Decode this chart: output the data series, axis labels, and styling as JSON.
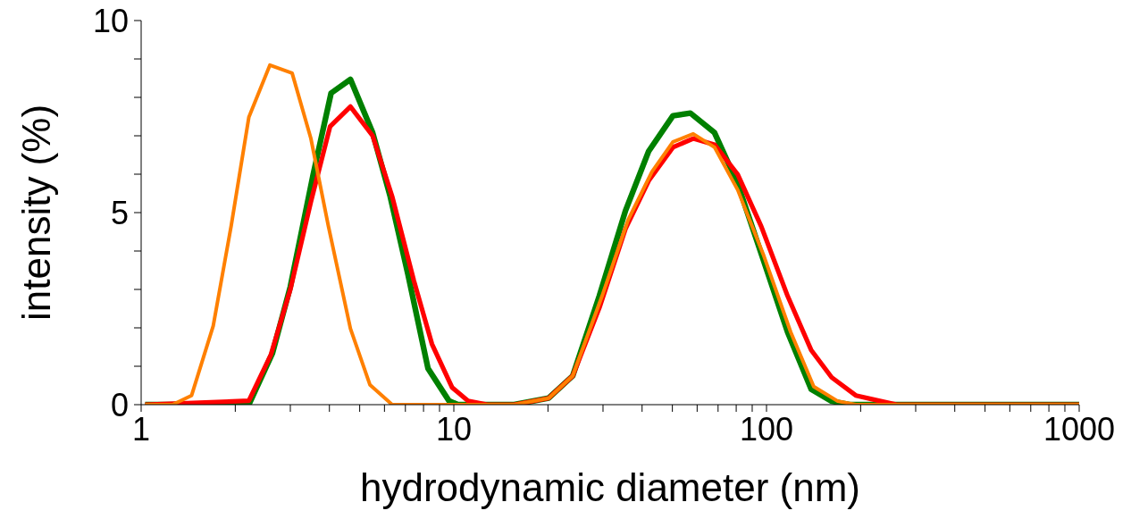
{
  "chart_data": {
    "type": "line",
    "xlabel": "hydrodynamic diameter (nm)",
    "ylabel": "intensity (%)",
    "log": "x",
    "xlim": [
      1,
      1000
    ],
    "ylim": [
      0,
      10
    ],
    "marker": "none",
    "line_style": "solid",
    "xticks": [
      1,
      {
        "value": 2,
        "label": null
      },
      {
        "value": 3,
        "label": null
      },
      {
        "value": 4,
        "label": null
      },
      {
        "value": 5,
        "label": null
      },
      {
        "value": 6,
        "label": null
      },
      {
        "value": 7,
        "label": null
      },
      {
        "value": 8,
        "label": null
      },
      {
        "value": 9,
        "label": null
      },
      10,
      {
        "value": 20,
        "label": null
      },
      {
        "value": 30,
        "label": null
      },
      {
        "value": 40,
        "label": null
      },
      {
        "value": 50,
        "label": null
      },
      {
        "value": 60,
        "label": null
      },
      {
        "value": 70,
        "label": null
      },
      {
        "value": 80,
        "label": null
      },
      {
        "value": 90,
        "label": null
      },
      100,
      {
        "value": 200,
        "label": null
      },
      {
        "value": 300,
        "label": null
      },
      {
        "value": 400,
        "label": null
      },
      {
        "value": 500,
        "label": null
      },
      {
        "value": 600,
        "label": null
      },
      {
        "value": 700,
        "label": null
      },
      {
        "value": 800,
        "label": null
      },
      {
        "value": 900,
        "label": null
      },
      1000
    ],
    "yticks": [
      0,
      {
        "value": 1,
        "label": null
      },
      {
        "value": 2,
        "label": null
      },
      {
        "value": 3,
        "label": null
      },
      {
        "value": 4,
        "label": null
      },
      5,
      {
        "value": 6,
        "label": null
      },
      {
        "value": 7,
        "label": null
      },
      {
        "value": 8,
        "label": null
      },
      {
        "value": 9,
        "label": null
      },
      10
    ],
    "series": [
      {
        "color": "#008000",
        "x": [
          1.03,
          2.21,
          2.63,
          3.0,
          3.55,
          4.05,
          4.67,
          5.5,
          6.26,
          7.13,
          8.27,
          9.65,
          10.3,
          15.6,
          20.1,
          24.0,
          29.2,
          35.4,
          42.0,
          50.2,
          57.1,
          68.2,
          80.9,
          96.1,
          116.8,
          139,
          161.6,
          184,
          1000
        ],
        "values": [
          0,
          0,
          1.34,
          3.07,
          5.99,
          8.11,
          8.47,
          7.08,
          5.42,
          3.4,
          0.94,
          0.1,
          0,
          0,
          0.17,
          0.75,
          2.83,
          5.05,
          6.6,
          7.52,
          7.59,
          7.08,
          5.75,
          3.94,
          1.89,
          0.4,
          0.09,
          0,
          0
        ]
      },
      {
        "color": "#ff0000",
        "x": [
          1.03,
          2.21,
          2.6,
          3.0,
          3.49,
          4.02,
          4.67,
          5.5,
          6.35,
          7.45,
          8.51,
          9.87,
          11.1,
          12.8,
          15.6,
          20.1,
          24.0,
          29.2,
          35.4,
          42.0,
          50.2,
          58.3,
          68.2,
          80.9,
          96.1,
          116.8,
          139,
          161.6,
          193,
          232,
          261,
          1000
        ],
        "values": [
          0,
          0.1,
          1.3,
          3.0,
          5.28,
          7.24,
          7.76,
          7.0,
          5.42,
          3.23,
          1.58,
          0.45,
          0.1,
          0,
          0,
          0.17,
          0.75,
          2.52,
          4.58,
          5.83,
          6.7,
          6.93,
          6.77,
          5.99,
          4.65,
          2.83,
          1.42,
          0.71,
          0.24,
          0.09,
          0,
          0
        ]
      },
      {
        "color": "#ff8000",
        "x": [
          1.03,
          1.26,
          1.45,
          1.7,
          1.94,
          2.21,
          2.58,
          3.04,
          3.49,
          3.97,
          4.67,
          5.39,
          6.35,
          15.6,
          20.1,
          24.0,
          29.8,
          36.1,
          43,
          50.2,
          58.3,
          68.2,
          80.9,
          98.1,
          119.5,
          141.6,
          169,
          193,
          1000
        ],
        "values": [
          0,
          0,
          0.24,
          2.05,
          4.65,
          7.48,
          8.84,
          8.63,
          6.93,
          4.65,
          1.98,
          0.52,
          0,
          0,
          0.17,
          0.75,
          2.83,
          4.81,
          6.06,
          6.84,
          7.05,
          6.7,
          5.59,
          3.87,
          1.89,
          0.47,
          0.09,
          0,
          0
        ]
      }
    ]
  }
}
